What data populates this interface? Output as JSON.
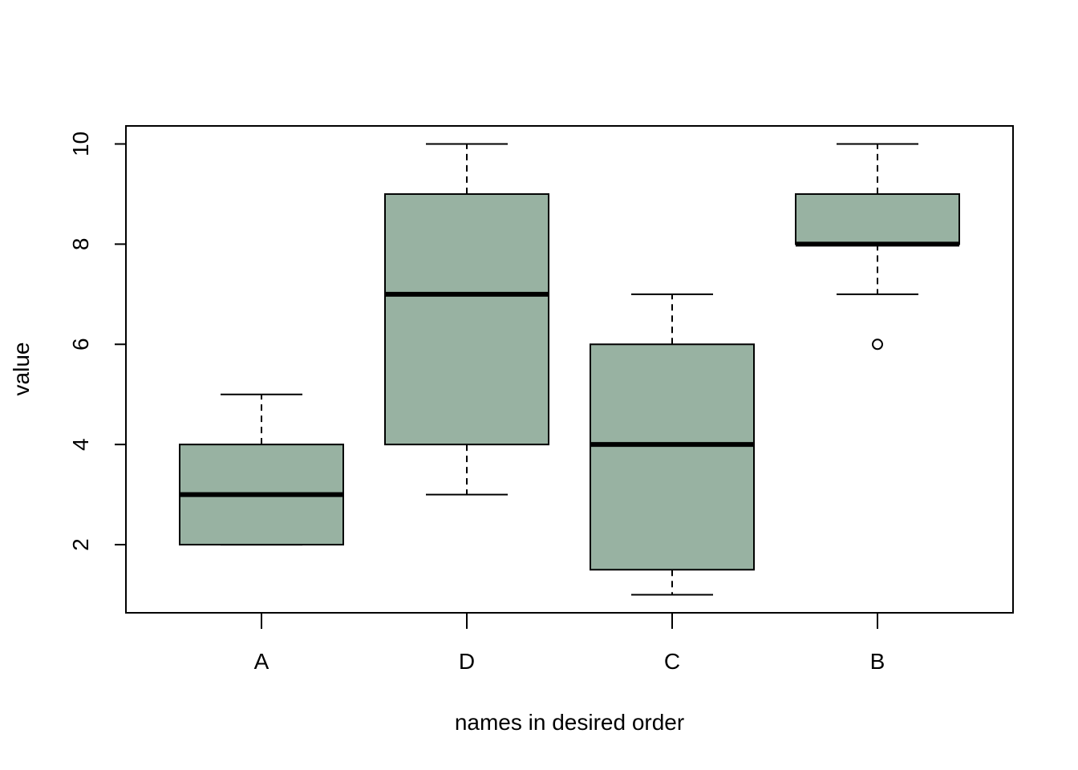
{
  "chart_data": {
    "type": "boxplot",
    "title": "",
    "xlabel": "names in desired order",
    "ylabel": "value",
    "ylim": [
      0.64,
      10.36
    ],
    "yticks": [
      2,
      4,
      6,
      8,
      10
    ],
    "categories": [
      "A",
      "D",
      "C",
      "B"
    ],
    "box_color": "#98B2A2",
    "outline_color": "#000000",
    "boxes": [
      {
        "category": "A",
        "whisker_low": 2,
        "q1": 2,
        "median": 3,
        "q3": 4,
        "whisker_high": 5,
        "outliers": []
      },
      {
        "category": "D",
        "whisker_low": 3,
        "q1": 4,
        "median": 7,
        "q3": 9,
        "whisker_high": 10,
        "outliers": []
      },
      {
        "category": "C",
        "whisker_low": 1,
        "q1": 1.5,
        "median": 4,
        "q3": 6,
        "whisker_high": 7,
        "outliers": []
      },
      {
        "category": "B",
        "whisker_low": 7,
        "q1": 8,
        "median": 8,
        "q3": 9,
        "whisker_high": 10,
        "outliers": [
          6
        ]
      }
    ]
  }
}
